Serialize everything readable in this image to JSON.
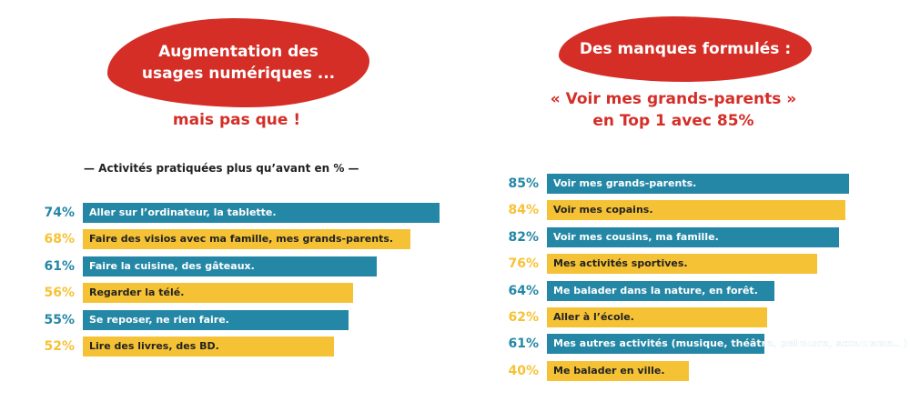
{
  "left": {
    "heading": "Augmentation des usages numériques ...",
    "heading_line1": "Augmentation des",
    "heading_line2": "usages numériques ...",
    "subtitle": "mais pas que !",
    "chart_title": "— Activités pratiquées plus qu’avant en % —"
  },
  "right": {
    "heading": "Des manques formulés :",
    "subtitle_line1": "« Voir mes grands-parents »",
    "subtitle_line2": "en Top 1 avec 85%"
  },
  "colors": {
    "blue": "#2487a6",
    "yellow": "#f6c235",
    "red": "#d42e27"
  },
  "chart_data": [
    {
      "type": "bar",
      "orientation": "horizontal",
      "title": "— Activités pratiquées plus qu’avant en % —",
      "categories": [
        "Aller sur l’ordinateur, la tablette.",
        "Faire des visios avec ma famille, mes grands-parents.",
        "Faire la cuisine, des gâteaux.",
        "Regarder la télé.",
        "Se reposer, ne rien faire.",
        "Lire des livres, des BD."
      ],
      "values": [
        74,
        68,
        61,
        56,
        55,
        52
      ],
      "value_labels": [
        "74%",
        "68%",
        "61%",
        "56%",
        "55%",
        "52%"
      ],
      "bar_colors": [
        "blue",
        "yellow",
        "blue",
        "yellow",
        "blue",
        "yellow"
      ]
    },
    {
      "type": "bar",
      "orientation": "horizontal",
      "title": "",
      "categories": [
        "Voir mes grands-parents.",
        "Voir mes copains.",
        "Voir mes cousins, ma famille.",
        "Mes activités sportives.",
        "Me balader dans la nature, en forêt.",
        "Aller à l’école.",
        "Mes autres activités (musique, théâtre, peinture, scoutisme…)",
        "Me balader en ville."
      ],
      "values": [
        85,
        84,
        82,
        76,
        64,
        62,
        61,
        40
      ],
      "value_labels": [
        "85%",
        "84%",
        "82%",
        "76%",
        "64%",
        "62%",
        "61%",
        "40%"
      ],
      "bar_colors": [
        "blue",
        "yellow",
        "blue",
        "yellow",
        "blue",
        "yellow",
        "blue",
        "yellow"
      ]
    }
  ]
}
